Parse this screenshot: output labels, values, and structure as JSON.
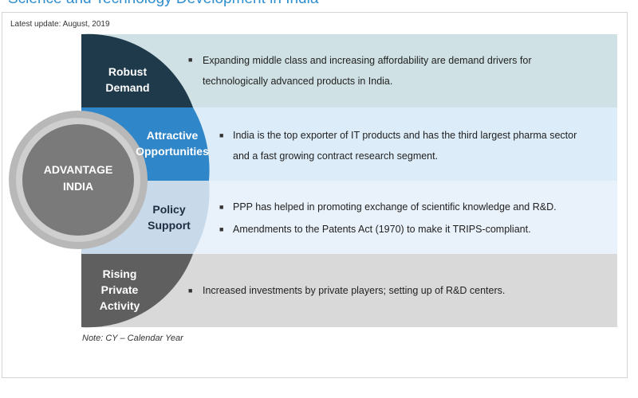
{
  "header": {
    "title": "Science and Technology Development in India",
    "update": "Latest update: August, 2019"
  },
  "center": {
    "line1": "ADVANTAGE",
    "line2": "INDIA"
  },
  "segments": [
    {
      "label": [
        "Robust",
        "Demand"
      ],
      "bullets": [
        [
          "Expanding middle class and increasing affordability are demand drivers for",
          "technologically advanced products in India."
        ]
      ]
    },
    {
      "label": [
        "Attractive",
        "Opportunities"
      ],
      "bullets": [
        [
          "India is the top exporter of IT products and has the third largest pharma sector",
          "and a fast growing contract research segment."
        ]
      ]
    },
    {
      "label": [
        "Policy",
        "Support"
      ],
      "bullets": [
        [
          "PPP has helped in promoting exchange of scientific knowledge and R&D."
        ],
        [
          "Amendments to the Patents Act (1970) to make it TRIPS-compliant."
        ]
      ]
    },
    {
      "label": [
        "Rising",
        "Private",
        "Activity"
      ],
      "bullets": [
        [
          "Increased investments by private players; setting up of R&D centers."
        ]
      ]
    }
  ],
  "note": "Note: CY – Calendar Year",
  "colors": {
    "robust": "#1f3a4b",
    "attractive": "#2f86c8",
    "policy": "#c8d9ea",
    "rising": "#5f5f5f",
    "ring": "#b8b8b8",
    "core": "#7a7a7a"
  }
}
